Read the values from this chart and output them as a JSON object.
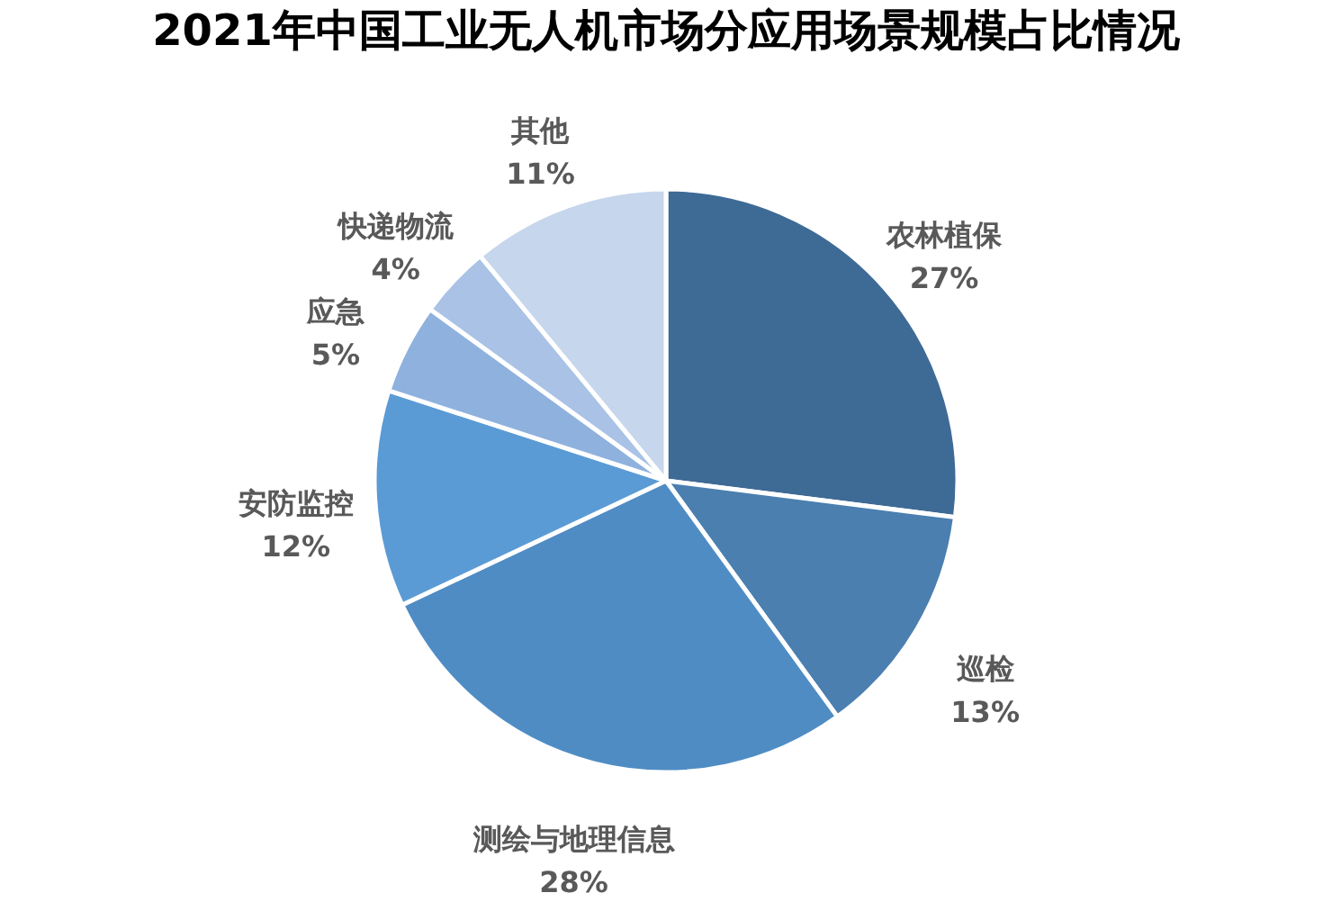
{
  "chart_data": {
    "type": "pie",
    "title": "2021年中国工业无人机市场分应用场景规模占比情况",
    "categories": [
      "农林植保",
      "巡检",
      "测绘与地理信息",
      "安防监控",
      "应急",
      "快递物流",
      "其他"
    ],
    "values": [
      27,
      13,
      28,
      12,
      5,
      4,
      11
    ],
    "value_labels": [
      "27%",
      "13%",
      "28%",
      "12%",
      "5%",
      "4%",
      "11%"
    ],
    "colors": [
      "#3e6a96",
      "#4a7fb0",
      "#4f8cc4",
      "#5b9bd5",
      "#8fb1de",
      "#a9c2e6",
      "#c6d6ec"
    ],
    "legend": false
  }
}
